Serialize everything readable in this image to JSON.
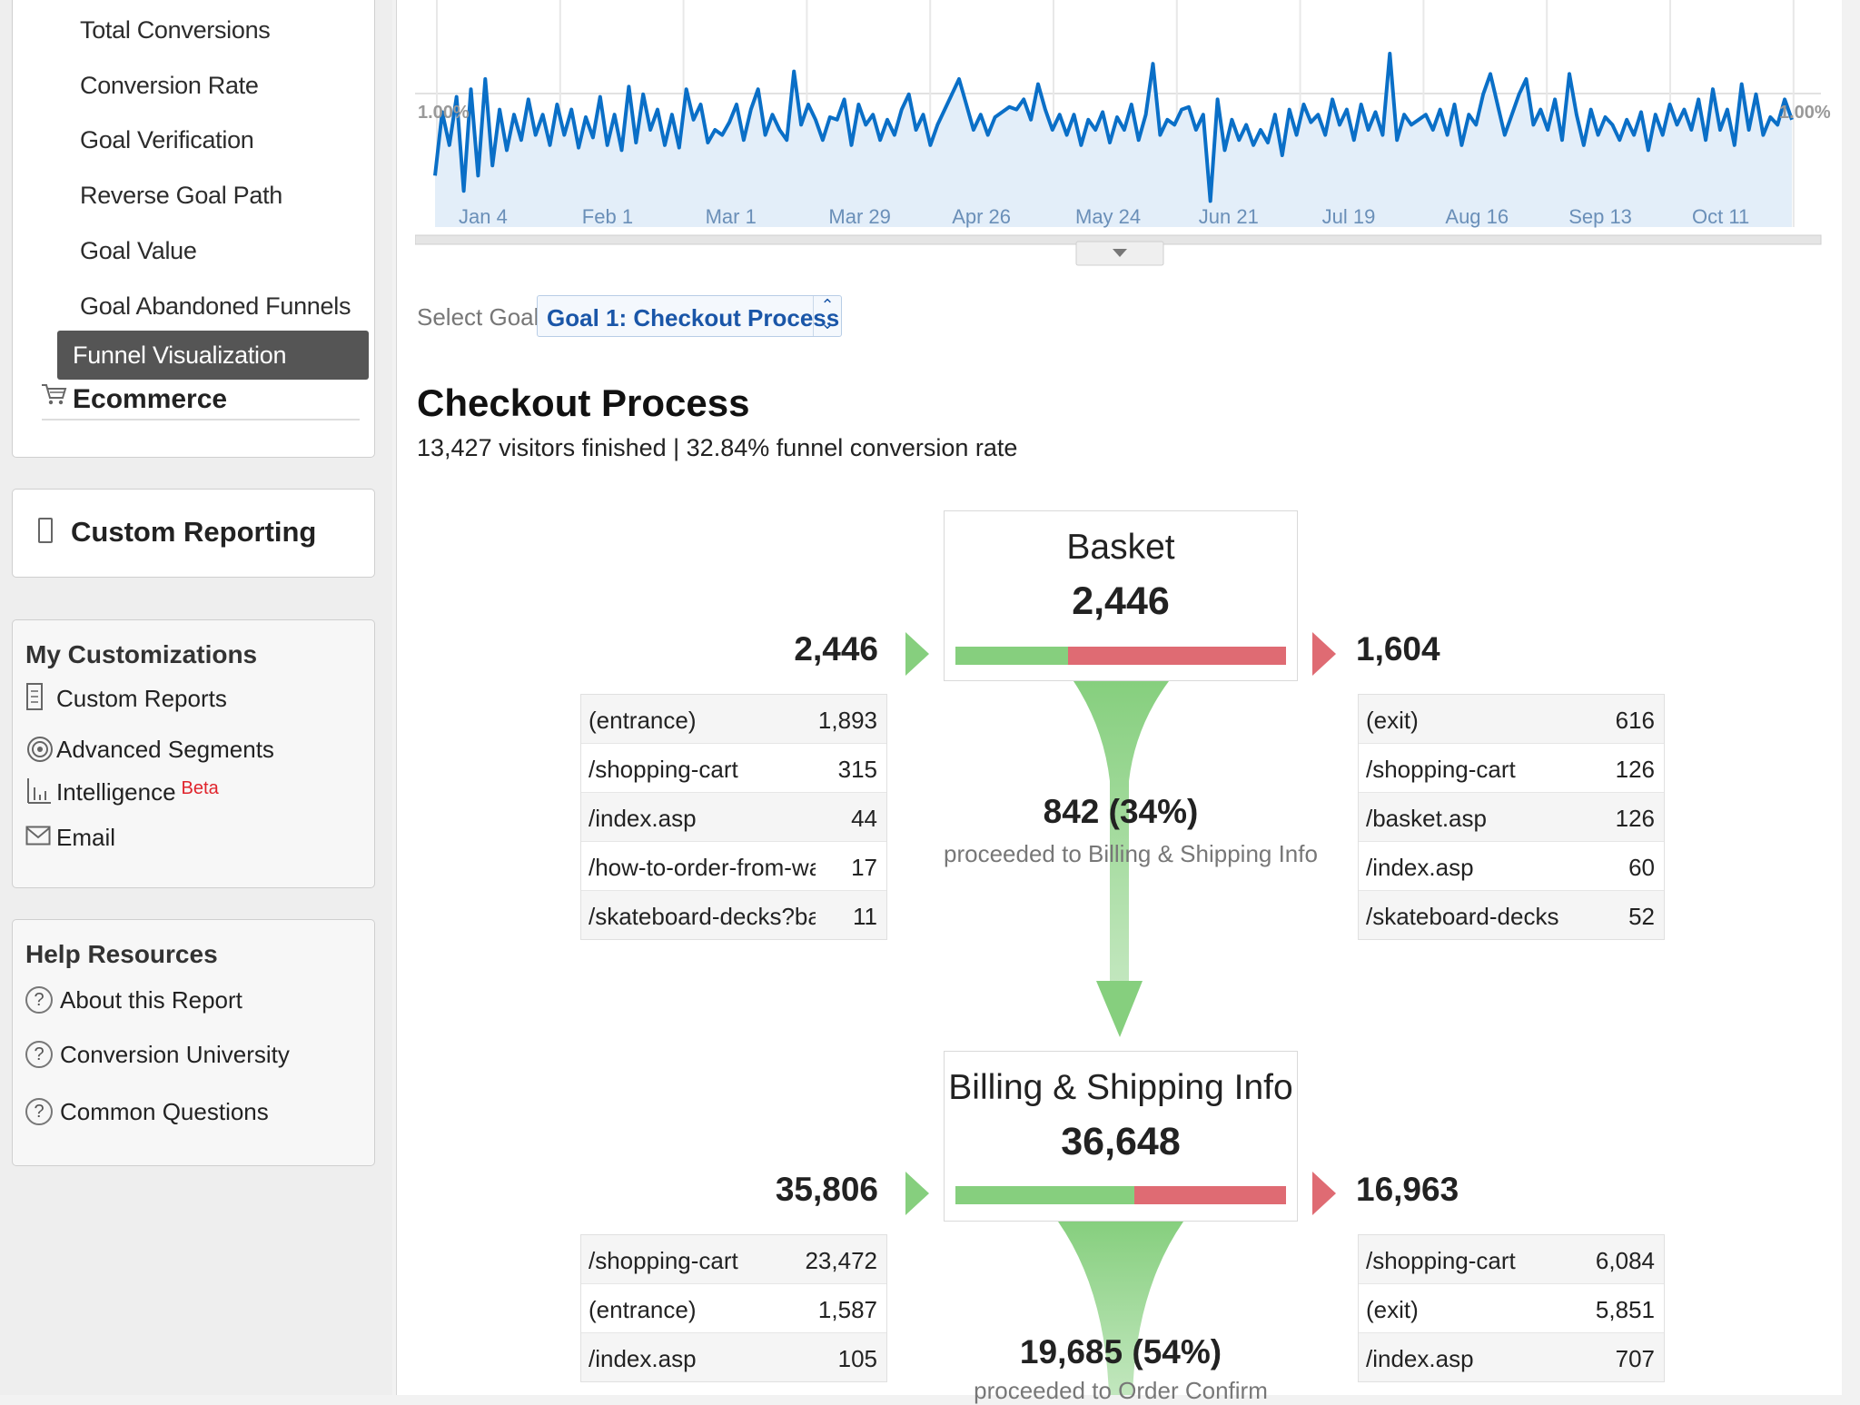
{
  "sidebar": {
    "goal_items": [
      {
        "label": "Total Conversions"
      },
      {
        "label": "Conversion Rate"
      },
      {
        "label": "Goal Verification"
      },
      {
        "label": "Reverse Goal Path"
      },
      {
        "label": "Goal Value"
      },
      {
        "label": "Goal Abandoned Funnels"
      }
    ],
    "active_item": "Funnel Visualization",
    "ecommerce": "Ecommerce",
    "custom_reporting": "Custom Reporting",
    "my_customizations": {
      "title": "My Customizations",
      "items": [
        {
          "label": "Custom Reports",
          "icon": "report-icon"
        },
        {
          "label": "Advanced Segments",
          "icon": "segments-icon"
        },
        {
          "label": "Intelligence",
          "icon": "intelligence-icon",
          "badge": "Beta"
        },
        {
          "label": "Email",
          "icon": "email-icon"
        }
      ]
    },
    "help": {
      "title": "Help Resources",
      "items": [
        {
          "label": "About this Report"
        },
        {
          "label": "Conversion University"
        },
        {
          "label": "Common Questions"
        }
      ]
    }
  },
  "chart_data": {
    "type": "area",
    "x_tick_labels": [
      "Jan 4",
      "Feb 1",
      "Mar 1",
      "Mar 29",
      "Apr 26",
      "May 24",
      "Jun 21",
      "Jul 19",
      "Aug 16",
      "Sep 13",
      "Oct 11"
    ],
    "y_label_left": "1.00%",
    "y_label_right": "1.00%",
    "line_color": "#0a6fc7",
    "fill_color": "#e3eef9",
    "grid": true,
    "values": [
      0.72,
      0.97,
      0.84,
      1.03,
      0.66,
      1.06,
      0.72,
      1.1,
      0.76,
      0.98,
      0.82,
      0.96,
      0.86,
      1.02,
      0.88,
      0.96,
      0.84,
      1.0,
      0.88,
      0.98,
      0.83,
      0.95,
      0.87,
      1.03,
      0.84,
      0.96,
      0.82,
      1.07,
      0.85,
      1.04,
      0.9,
      0.98,
      0.84,
      0.96,
      0.83,
      1.06,
      0.94,
      1.0,
      0.85,
      0.9,
      0.88,
      0.93,
      1.0,
      0.86,
      0.98,
      1.06,
      0.88,
      0.96,
      0.9,
      0.86,
      1.13,
      0.92,
      1.0,
      0.94,
      0.86,
      0.95,
      0.94,
      1.02,
      0.84,
      1.0,
      0.92,
      0.96,
      0.86,
      0.94,
      0.88,
      0.98,
      1.04,
      0.9,
      0.96,
      0.84,
      0.92,
      0.98,
      1.04,
      1.1,
      1.0,
      0.9,
      0.96,
      0.88,
      0.95,
      0.97,
      0.99,
      0.98,
      1.02,
      0.94,
      1.08,
      0.98,
      0.9,
      0.96,
      0.88,
      0.96,
      0.84,
      0.94,
      0.9,
      0.97,
      0.85,
      0.95,
      0.9,
      1.0,
      0.86,
      0.96,
      1.16,
      0.88,
      0.94,
      0.92,
      0.98,
      0.99,
      0.9,
      0.96,
      0.62,
      1.02,
      0.82,
      0.94,
      0.86,
      0.92,
      0.84,
      0.9,
      0.85,
      0.96,
      0.8,
      0.98,
      0.88,
      1.0,
      0.93,
      0.96,
      0.88,
      1.02,
      0.92,
      0.98,
      0.86,
      1.0,
      0.9,
      0.97,
      0.88,
      1.2,
      0.86,
      0.96,
      0.92,
      0.94,
      0.96,
      0.9,
      0.98,
      0.88,
      1.0,
      0.84,
      0.96,
      0.92,
      1.04,
      1.12,
      1.0,
      0.88,
      0.96,
      1.04,
      1.1,
      0.92,
      0.98,
      0.9,
      1.02,
      0.86,
      1.12,
      0.96,
      0.84,
      0.98,
      0.88,
      0.95,
      0.92,
      0.86,
      0.94,
      0.88,
      0.97,
      0.82,
      0.96,
      0.88,
      1.0,
      0.92,
      0.98,
      0.9,
      1.02,
      0.86,
      1.06,
      0.9,
      0.98,
      0.84,
      1.08,
      0.9,
      1.04,
      0.88,
      0.95,
      0.92,
      1.02,
      0.94
    ]
  },
  "goal_select": {
    "label": "Select Goal:",
    "value": "Goal 1: Checkout Process"
  },
  "funnel": {
    "title": "Checkout Process",
    "subtitle": "13,427 visitors finished | 32.84% funnel conversion rate",
    "steps": [
      {
        "name": "Basket",
        "count": "2,446",
        "in_total": "2,446",
        "out_total": "1,604",
        "proceed_fraction": 0.34,
        "sources": [
          {
            "page": "(entrance)",
            "value": "1,893"
          },
          {
            "page": "/shopping-cart",
            "value": "315"
          },
          {
            "page": "/index.asp",
            "value": "44"
          },
          {
            "page": "/how-to-order-from-ware",
            "value": "17"
          },
          {
            "page": "/skateboard-decks?bac=",
            "value": "11"
          }
        ],
        "exits": [
          {
            "page": "(exit)",
            "value": "616"
          },
          {
            "page": "/shopping-cart",
            "value": "126"
          },
          {
            "page": "/basket.asp",
            "value": "126"
          },
          {
            "page": "/index.asp",
            "value": "60"
          },
          {
            "page": "/skateboard-decks",
            "value": "52"
          }
        ],
        "proceeded_value": "842 (34%)",
        "proceeded_label": "proceeded to Billing & Shipping Info"
      },
      {
        "name": "Billing & Shipping Info",
        "count": "36,648",
        "in_total": "35,806",
        "out_total": "16,963",
        "proceed_fraction": 0.54,
        "sources": [
          {
            "page": "/shopping-cart",
            "value": "23,472"
          },
          {
            "page": "(entrance)",
            "value": "1,587"
          },
          {
            "page": "/index.asp",
            "value": "105"
          }
        ],
        "exits": [
          {
            "page": "/shopping-cart",
            "value": "6,084"
          },
          {
            "page": "(exit)",
            "value": "5,851"
          },
          {
            "page": "/index.asp",
            "value": "707"
          }
        ],
        "proceeded_value": "19,685 (54%)",
        "proceeded_label": "proceeded to Order Confirm"
      }
    ]
  },
  "colors": {
    "green": "#86cf7e",
    "red": "#df6b73",
    "link_blue": "#1a56a8",
    "active_nav": "#555555"
  }
}
